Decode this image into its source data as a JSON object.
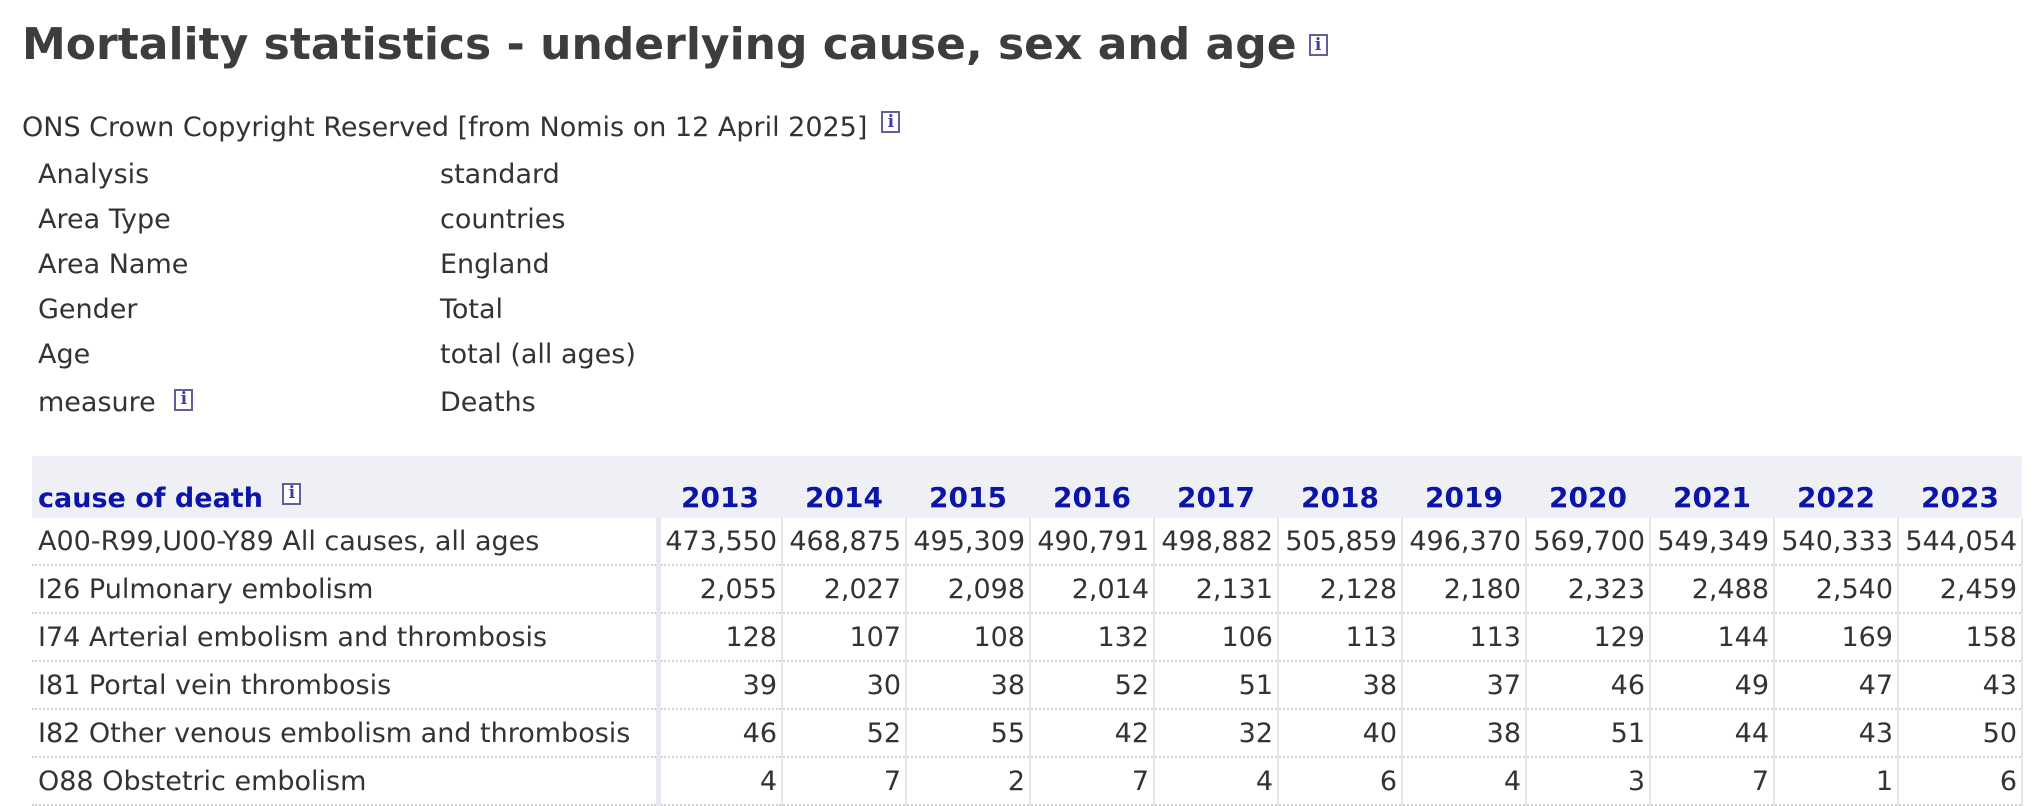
{
  "title": "Mortality statistics - underlying cause, sex and age",
  "info_glyph": "i",
  "copyright": "ONS Crown Copyright Reserved [from Nomis on 12 April 2025]",
  "meta": [
    {
      "key": "Analysis",
      "value": "standard"
    },
    {
      "key": "Area Type",
      "value": "countries"
    },
    {
      "key": "Area Name",
      "value": "England"
    },
    {
      "key": "Gender",
      "value": "Total"
    },
    {
      "key": "Age",
      "value": "total (all ages)"
    },
    {
      "key": "measure",
      "value": "Deaths"
    }
  ],
  "table": {
    "row_header": "cause of death",
    "years": [
      "2013",
      "2014",
      "2015",
      "2016",
      "2017",
      "2018",
      "2019",
      "2020",
      "2021",
      "2022",
      "2023"
    ],
    "rows": [
      {
        "label": "A00-R99,U00-Y89 All causes, all ages",
        "values": [
          "473,550",
          "468,875",
          "495,309",
          "490,791",
          "498,882",
          "505,859",
          "496,370",
          "569,700",
          "549,349",
          "540,333",
          "544,054"
        ]
      },
      {
        "label": "I26 Pulmonary embolism",
        "values": [
          "2,055",
          "2,027",
          "2,098",
          "2,014",
          "2,131",
          "2,128",
          "2,180",
          "2,323",
          "2,488",
          "2,540",
          "2,459"
        ]
      },
      {
        "label": "I74 Arterial embolism and thrombosis",
        "values": [
          "128",
          "107",
          "108",
          "132",
          "106",
          "113",
          "113",
          "129",
          "144",
          "169",
          "158"
        ]
      },
      {
        "label": "I81 Portal vein thrombosis",
        "values": [
          "39",
          "30",
          "38",
          "52",
          "51",
          "38",
          "37",
          "46",
          "49",
          "47",
          "43"
        ]
      },
      {
        "label": "I82 Other venous embolism and thrombosis",
        "values": [
          "46",
          "52",
          "55",
          "42",
          "32",
          "40",
          "38",
          "51",
          "44",
          "43",
          "50"
        ]
      },
      {
        "label": "O88 Obstetric embolism",
        "values": [
          "4",
          "7",
          "2",
          "7",
          "4",
          "6",
          "4",
          "3",
          "7",
          "1",
          "6"
        ]
      }
    ]
  }
}
